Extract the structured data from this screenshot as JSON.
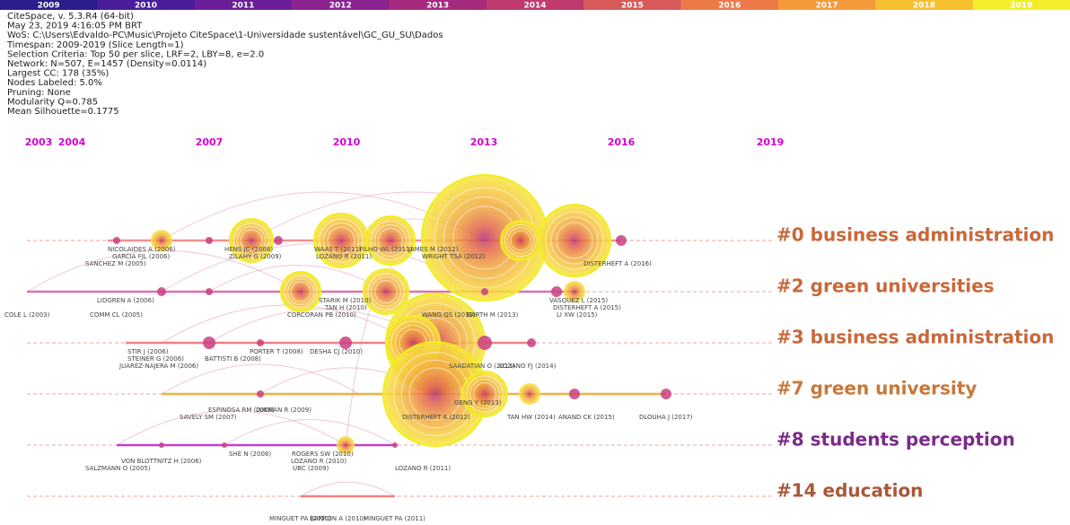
{
  "header": {
    "lines": [
      "CiteSpace, v. 5.3.R4 (64-bit)",
      "May 23, 2019 4:16:05 PM BRT",
      "WoS: C:\\Users\\Edvaldo-PC\\Music\\Projeto CiteSpace\\1-Universidade sustentável\\GC_GU_SU\\Dados",
      "Timespan: 2009-2019 (Slice Length=1)",
      "Selection Criteria: Top 50 per slice, LRF=2, LBY=8, e=2.0",
      "Network: N=507, E=1457 (Density=0.0114)",
      "Largest CC: 178 (35%)",
      "Nodes Labeled: 5.0%",
      "Pruning: None",
      "Modularity Q=0.785",
      "Mean Silhouette=0.1775"
    ]
  },
  "color_legend": [
    "2009",
    "2010",
    "2011",
    "2012",
    "2013",
    "2014",
    "2015",
    "2016",
    "2017",
    "2018",
    "2019"
  ],
  "timeline_years": [
    "2003",
    "2004",
    "2007",
    "2010",
    "2013",
    "2016",
    "2019"
  ],
  "clusters": [
    {
      "label": "#0 business administration",
      "nodes": [
        "NICOLAIDES A (2006)",
        "GARCIA FJL (2006)",
        "SANCHEZ M (2005)",
        "HENS JC (2008)",
        "ZILAHY G (2009)",
        "WAAS T (2011)",
        "LOZANO R (2011)",
        "FILHO WL (2011)",
        "JAMES M (2012)",
        "WRIGHT TSA (2012)",
        "DISTERHEFT A (2016)"
      ]
    },
    {
      "label": "#2 green universities",
      "nodes": [
        "LIDGREN A (2006)",
        "COMM CL (2005)",
        "COLE L (2003)",
        "STARIK M (2010)",
        "TAN H (2010)",
        "CORCORAN PB (2010)",
        "WANG QS (2012)",
        "BARTH M (2013)",
        "VASQUEZ L (2015)",
        "DISTERHEFT A (2015)",
        "LI XW (2015)"
      ]
    },
    {
      "label": "#3 business administration",
      "nodes": [
        "STIR J (2006)",
        "STEINER G (2006)",
        "JUAREZ-NAJERA M (2006)",
        "PORTER T (2008)",
        "BATTISTI B (2008)",
        "DESHA CJ (2010)",
        "SAADATIAN O (2013)",
        "LOZANO FJ (2014)"
      ]
    },
    {
      "label": "#7 green university",
      "nodes": [
        "ESPINOSA RM (2008)",
        "SAVELY SM (2007)",
        "LUKMAN R (2009)",
        "GENG Y (2013)",
        "DISTERHEFT A (2012)",
        "TAN HW (2014)",
        "ANAND CK (2015)",
        "DLOUHA J (2017)"
      ]
    },
    {
      "label": "#8 students perception",
      "nodes": [
        "VON BLOTTNITZ H (2006)",
        "SALZMANN O (2005)",
        "SHE N (2008)",
        "ROGERS SW (2010)",
        "LOZANO R (2010)",
        "UBC (2009)",
        "LOZANO R (2011)"
      ]
    },
    {
      "label": "#14 education",
      "nodes": [
        "MINGUET PA (2010)",
        "BARRON A (2010)",
        "MINGUET PA (2011)"
      ]
    }
  ]
}
